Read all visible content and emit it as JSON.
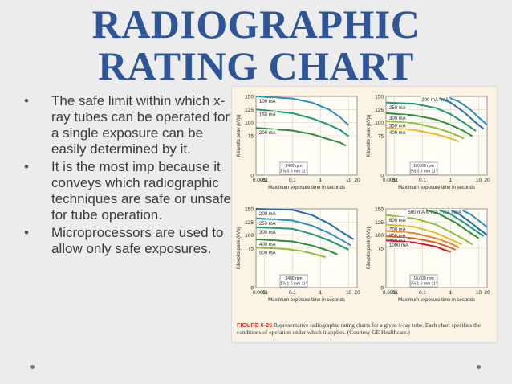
{
  "slide": {
    "title_line1": "RADIOGRAPHIC",
    "title_line2": "RATING CHART",
    "bullets": [
      "The safe limit within which x-ray tubes can be operated for a single exposure can be easily determined by it.",
      "It is the most imp because it conveys which radiographic techniques are safe or unsafe for tube operation.",
      "Microprocessors are used to allow only safe exposures."
    ],
    "caption_figure": "FIGURE 6-26",
    "caption_text": "Representative radiographic rating charts for a given x-ray tube. Each chart specifies the conditions of operation under which it applies. (Courtesy GE Healthcare.)"
  },
  "chart_data": [
    {
      "type": "line",
      "xlabel": "Maximum exposure time in seconds",
      "ylabel": "Kilovolts peak (kVp)",
      "x_scale": "log",
      "xlim": [
        0.005,
        20
      ],
      "ylim": [
        0,
        150
      ],
      "x_ticks": [
        "0.005",
        ".01",
        "0.1",
        "1",
        "10",
        "20"
      ],
      "y_ticks": [
        "0",
        "75",
        "100",
        "125",
        "150"
      ],
      "info_box": [
        "3400 rpm",
        "1⅞ 0.6 mm 11°"
      ],
      "series": [
        {
          "name": "100 mA",
          "color": "#2a8fc4",
          "points": [
            [
              0.005,
              150
            ],
            [
              0.1,
              146
            ],
            [
              0.5,
              138
            ],
            [
              2,
              125
            ],
            [
              5,
              110
            ],
            [
              10,
              95
            ]
          ]
        },
        {
          "name": "150 mA",
          "color": "#1a9a78",
          "points": [
            [
              0.005,
              125
            ],
            [
              0.1,
              118
            ],
            [
              0.5,
              108
            ],
            [
              2,
              96
            ],
            [
              5,
              86
            ],
            [
              10,
              74
            ]
          ]
        },
        {
          "name": "200 mA",
          "color": "#2c8a3c",
          "points": [
            [
              0.005,
              90
            ],
            [
              0.1,
              85
            ],
            [
              0.5,
              78
            ],
            [
              2,
              68
            ],
            [
              5,
              62
            ],
            [
              8,
              56
            ]
          ]
        }
      ]
    },
    {
      "type": "line",
      "xlabel": "Maximum exposure time in seconds",
      "ylabel": "Kilovolts peak (kVp)",
      "x_scale": "log",
      "xlim": [
        0.005,
        20
      ],
      "ylim": [
        0,
        150
      ],
      "x_ticks": [
        "0.005",
        ".01",
        "0.1",
        "1",
        "10",
        "20"
      ],
      "y_ticks": [
        "0",
        "75",
        "100",
        "125",
        "150"
      ],
      "info_box": [
        "10,000 rpm",
        "3⅛ 0.6 mm 11°"
      ],
      "series": [
        {
          "name": "150 mA",
          "color": "#2a8fc4",
          "points": [
            [
              0.7,
              150
            ],
            [
              2,
              140
            ],
            [
              5,
              125
            ],
            [
              10,
              110
            ],
            [
              20,
              96
            ]
          ]
        },
        {
          "name": "200 mA",
          "color": "#1f6fb0",
          "points": [
            [
              0.3,
              150
            ],
            [
              1,
              138
            ],
            [
              3,
              120
            ],
            [
              8,
              100
            ],
            [
              15,
              88
            ]
          ]
        },
        {
          "name": "250 mA",
          "color": "#1a9a78",
          "points": [
            [
              0.005,
              138
            ],
            [
              0.05,
              136
            ],
            [
              0.3,
              128
            ],
            [
              1,
              116
            ],
            [
              3,
              100
            ],
            [
              8,
              84
            ]
          ]
        },
        {
          "name": "300 mA",
          "color": "#2c8a3c",
          "points": [
            [
              0.005,
              118
            ],
            [
              0.05,
              114
            ],
            [
              0.3,
              106
            ],
            [
              1,
              96
            ],
            [
              3,
              84
            ],
            [
              6,
              74
            ]
          ]
        },
        {
          "name": "350 mA",
          "color": "#8cbf3a",
          "points": [
            [
              0.005,
              103
            ],
            [
              0.05,
              99
            ],
            [
              0.3,
              90
            ],
            [
              1,
              81
            ],
            [
              3,
              70
            ]
          ]
        },
        {
          "name": "400 mA",
          "color": "#e8b82a",
          "points": [
            [
              0.005,
              90
            ],
            [
              0.05,
              86
            ],
            [
              0.3,
              78
            ],
            [
              1,
              70
            ],
            [
              2,
              64
            ]
          ]
        }
      ]
    },
    {
      "type": "line",
      "xlabel": "Maximum exposure time in seconds",
      "ylabel": "Kilovolts peak (kVp)",
      "x_scale": "log",
      "xlim": [
        0.005,
        20
      ],
      "ylim": [
        0,
        150
      ],
      "x_ticks": [
        "0.005",
        ".01",
        "0.1",
        "1",
        "10",
        "20"
      ],
      "y_ticks": [
        "0",
        "75",
        "100",
        "125",
        "150"
      ],
      "info_box": [
        "3400 rpm",
        "1⅞ 1.0 mm 11°"
      ],
      "series": [
        {
          "name": "200 mA",
          "color": "#1f6fb0",
          "points": [
            [
              0.005,
              150
            ],
            [
              0.1,
              148
            ],
            [
              0.5,
              138
            ],
            [
              2,
              122
            ],
            [
              6,
              105
            ],
            [
              15,
              92
            ]
          ]
        },
        {
          "name": "250 mA",
          "color": "#2a8fc4",
          "points": [
            [
              0.005,
              132
            ],
            [
              0.1,
              128
            ],
            [
              0.5,
              118
            ],
            [
              2,
              104
            ],
            [
              6,
              90
            ],
            [
              12,
              80
            ]
          ]
        },
        {
          "name": "300 mA",
          "color": "#1a9a78",
          "points": [
            [
              0.005,
              115
            ],
            [
              0.1,
              112
            ],
            [
              0.5,
              102
            ],
            [
              2,
              90
            ],
            [
              5,
              80
            ],
            [
              10,
              72
            ]
          ]
        },
        {
          "name": "400 mA",
          "color": "#2c8a3c",
          "points": [
            [
              0.005,
              92
            ],
            [
              0.1,
              88
            ],
            [
              0.5,
              80
            ],
            [
              2,
              70
            ],
            [
              4,
              63
            ]
          ]
        },
        {
          "name": "500 mA",
          "color": "#8cbf3a",
          "points": [
            [
              0.005,
              76
            ],
            [
              0.05,
              74
            ],
            [
              0.2,
              70
            ],
            [
              0.6,
              64
            ],
            [
              1.5,
              58
            ]
          ]
        }
      ]
    },
    {
      "type": "line",
      "xlabel": "Maximum exposure time in seconds",
      "ylabel": "Kilovolts peak (kVp)",
      "x_scale": "log",
      "xlim": [
        0.005,
        20
      ],
      "ylim": [
        0,
        150
      ],
      "x_ticks": [
        "0.005",
        ".01",
        "0.1",
        "1",
        "10",
        "20"
      ],
      "y_ticks": [
        "0",
        "75",
        "100",
        "125",
        "150"
      ],
      "info_box": [
        "10,000 rpm",
        "3⅛ 1.0 mm 11°"
      ],
      "series": [
        {
          "name": "250 mA",
          "color": "#2a8fc4",
          "points": [
            [
              2,
              150
            ],
            [
              5,
              140
            ],
            [
              10,
              128
            ],
            [
              20,
              115
            ]
          ]
        },
        {
          "name": "300 mA",
          "color": "#1f6fb0",
          "points": [
            [
              0.8,
              150
            ],
            [
              2,
              140
            ],
            [
              5,
              125
            ],
            [
              10,
              112
            ],
            [
              20,
              100
            ]
          ]
        },
        {
          "name": "400 mA",
          "color": "#1a9a78",
          "points": [
            [
              0.3,
              150
            ],
            [
              1,
              140
            ],
            [
              3,
              124
            ],
            [
              8,
              108
            ],
            [
              15,
              98
            ]
          ]
        },
        {
          "name": "500 mA",
          "color": "#2c8a3c",
          "points": [
            [
              0.1,
              150
            ],
            [
              0.4,
              140
            ],
            [
              1.5,
              124
            ],
            [
              4,
              108
            ],
            [
              10,
              94
            ]
          ]
        },
        {
          "name": "600 mA",
          "color": "#8cbf3a",
          "points": [
            [
              0.005,
              138
            ],
            [
              0.05,
              132
            ],
            [
              0.3,
              120
            ],
            [
              1,
              106
            ],
            [
              3,
              92
            ],
            [
              6,
              82
            ]
          ]
        },
        {
          "name": "700 mA",
          "color": "#e8b82a",
          "points": [
            [
              0.005,
              120
            ],
            [
              0.05,
              116
            ],
            [
              0.3,
              104
            ],
            [
              1,
              92
            ],
            [
              2.5,
              82
            ]
          ]
        },
        {
          "name": "800 mA",
          "color": "#e8892a",
          "points": [
            [
              0.005,
              108
            ],
            [
              0.05,
              104
            ],
            [
              0.3,
              94
            ],
            [
              1,
              84
            ],
            [
              2,
              76
            ]
          ]
        },
        {
          "name": "900 mA",
          "color": "#e05a2a",
          "points": [
            [
              0.005,
              98
            ],
            [
              0.05,
              94
            ],
            [
              0.3,
              86
            ],
            [
              0.8,
              78
            ],
            [
              1.5,
              72
            ]
          ]
        },
        {
          "name": "1000 mA",
          "color": "#c8202a",
          "points": [
            [
              0.005,
              90
            ],
            [
              0.05,
              86
            ],
            [
              0.3,
              78
            ],
            [
              0.6,
              72
            ],
            [
              1,
              68
            ]
          ]
        }
      ]
    }
  ]
}
